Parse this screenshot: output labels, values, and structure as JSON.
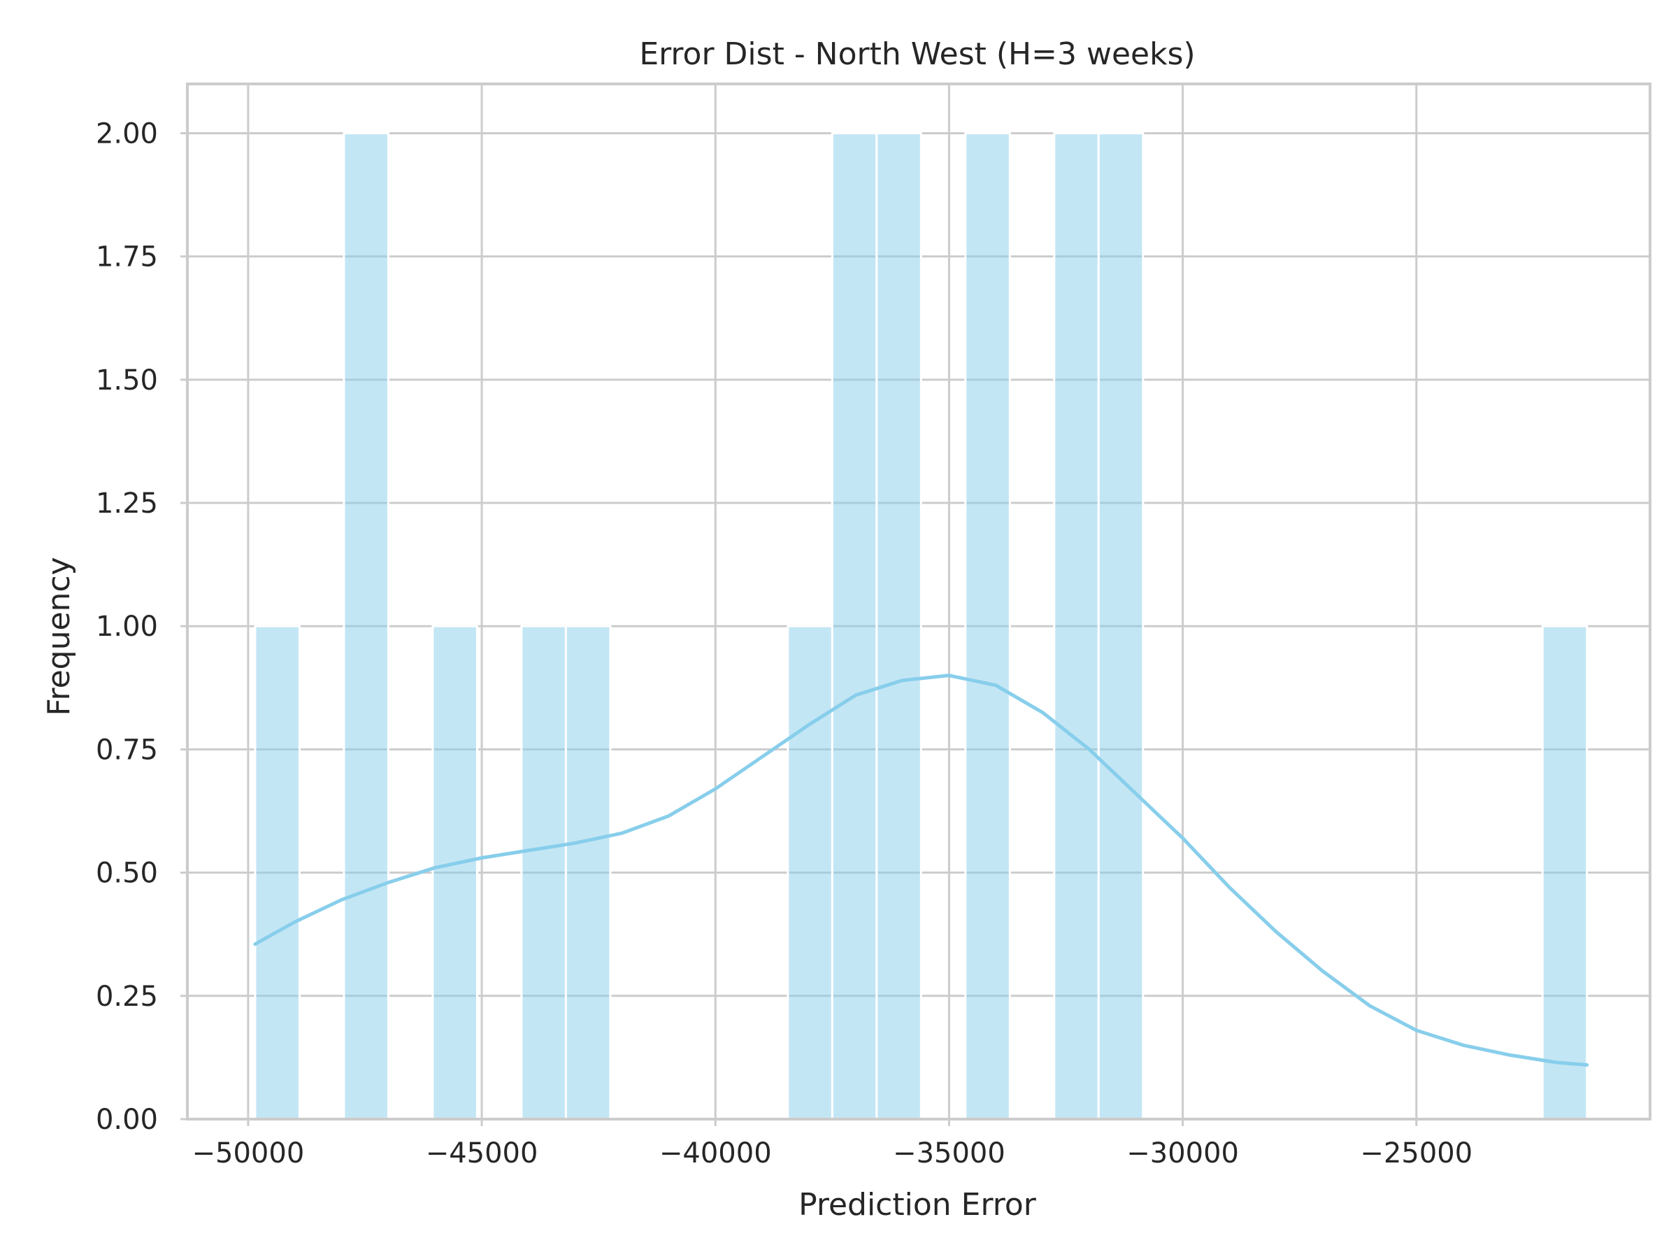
{
  "chart_data": {
    "type": "bar",
    "title": "Error Dist - North West (H=3 weeks)",
    "xlabel": "Prediction Error",
    "ylabel": "Frequency",
    "xlim": [
      -51300,
      -20000
    ],
    "ylim": [
      0,
      2.1
    ],
    "xticks": [
      -50000,
      -45000,
      -40000,
      -35000,
      -30000,
      -25000
    ],
    "xtick_labels": [
      "−50000",
      "−45000",
      "−40000",
      "−35000",
      "−30000",
      "−25000"
    ],
    "yticks": [
      0,
      0.25,
      0.5,
      0.75,
      1.0,
      1.25,
      1.5,
      1.75,
      2.0
    ],
    "ytick_labels": [
      "0.00",
      "0.25",
      "0.50",
      "0.75",
      "1.00",
      "1.25",
      "1.50",
      "1.75",
      "2.00"
    ],
    "grid": true,
    "bar_color": "#87ceeb",
    "bar_opacity": 0.5,
    "kde_color": "#87ceeb",
    "bins": [
      {
        "x0": -49850,
        "x1": -48900,
        "count": 1
      },
      {
        "x0": -47950,
        "x1": -47000,
        "count": 2
      },
      {
        "x0": -46050,
        "x1": -45100,
        "count": 1
      },
      {
        "x0": -44150,
        "x1": -43200,
        "count": 1
      },
      {
        "x0": -43200,
        "x1": -42250,
        "count": 1
      },
      {
        "x0": -38450,
        "x1": -37500,
        "count": 1
      },
      {
        "x0": -37500,
        "x1": -36550,
        "count": 2
      },
      {
        "x0": -36550,
        "x1": -35600,
        "count": 2
      },
      {
        "x0": -34650,
        "x1": -33700,
        "count": 2
      },
      {
        "x0": -32750,
        "x1": -31800,
        "count": 2
      },
      {
        "x0": -31800,
        "x1": -30850,
        "count": 2
      },
      {
        "x0": -22300,
        "x1": -21350,
        "count": 1
      }
    ],
    "kde": {
      "x": [
        -49850,
        -49000,
        -48000,
        -47000,
        -46000,
        -45000,
        -44000,
        -43000,
        -42000,
        -41000,
        -40000,
        -39000,
        -38000,
        -37000,
        -36000,
        -35000,
        -34000,
        -33000,
        -32000,
        -31000,
        -30000,
        -29000,
        -28000,
        -27000,
        -26000,
        -25000,
        -24000,
        -23000,
        -22000,
        -21350
      ],
      "y": [
        0.355,
        0.4,
        0.445,
        0.48,
        0.51,
        0.53,
        0.545,
        0.56,
        0.58,
        0.615,
        0.67,
        0.735,
        0.8,
        0.86,
        0.89,
        0.9,
        0.88,
        0.825,
        0.75,
        0.66,
        0.57,
        0.47,
        0.38,
        0.3,
        0.23,
        0.18,
        0.15,
        0.13,
        0.115,
        0.11
      ]
    }
  }
}
